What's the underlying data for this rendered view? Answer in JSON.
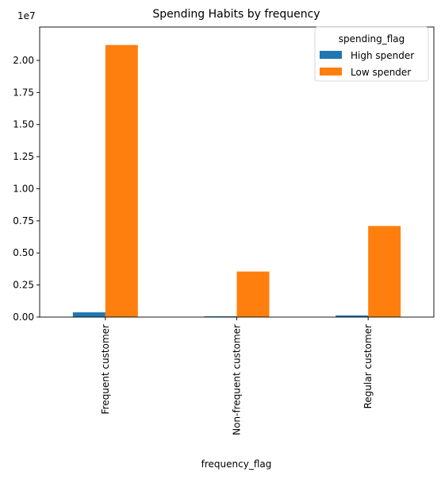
{
  "chart_data": {
    "type": "bar",
    "title": "Spending Habits by frequency",
    "xlabel": "frequency_flag",
    "ylabel": "",
    "offset_text": "1e7",
    "categories": [
      "Frequent customer",
      "Non-frequent customer",
      "Regular customer"
    ],
    "series": [
      {
        "name": "High spender",
        "values": [
          370000,
          60000,
          130000
        ],
        "color": "#1f77b4"
      },
      {
        "name": "Low spender",
        "values": [
          21200000,
          3550000,
          7100000
        ],
        "color": "#ff7f0e"
      }
    ],
    "ylim": [
      0,
      22600000
    ],
    "yticks": [
      0,
      2500000,
      5000000,
      7500000,
      10000000,
      12500000,
      15000000,
      17500000,
      20000000
    ],
    "ytick_labels": [
      "0.00",
      "0.25",
      "0.50",
      "0.75",
      "1.00",
      "1.25",
      "1.50",
      "1.75",
      "2.00"
    ],
    "legend": {
      "title": "spending_flag",
      "position": "upper right"
    },
    "grid": false
  }
}
